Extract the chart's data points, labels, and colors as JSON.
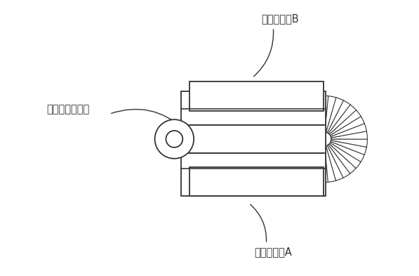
{
  "bg_color": "#ffffff",
  "line_color": "#333333",
  "label_top": "略平板蓋体B",
  "label_bottom": "略平板蓋体A",
  "label_left": "電子回路用蓋体",
  "fig_width": 5.97,
  "fig_height": 3.93,
  "dpi": 100
}
